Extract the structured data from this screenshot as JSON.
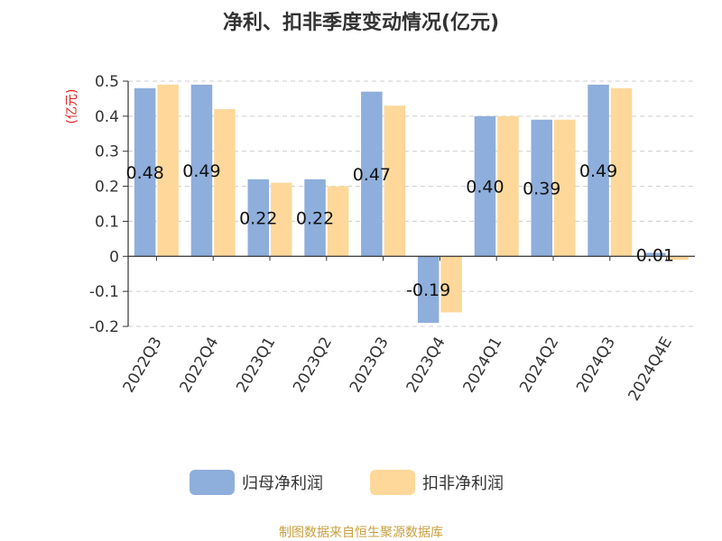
{
  "chart_data": {
    "type": "bar",
    "title": "净利、扣非季度变动情况(亿元)",
    "ylabel": "(亿元)",
    "ylim": [
      -0.2,
      0.5
    ],
    "yticks": [
      0.5,
      0.4,
      0.3,
      0.2,
      0.1,
      0,
      -0.1,
      -0.2
    ],
    "ytick_labels": [
      "0.5",
      "0.4",
      "0.3",
      "0.2",
      "0.1",
      "0",
      "-0.1",
      "-0.2"
    ],
    "grid": true,
    "legend_position": "bottom",
    "categories": [
      "2022Q3",
      "2022Q4",
      "2023Q1",
      "2023Q2",
      "2023Q3",
      "2023Q4",
      "2024Q1",
      "2024Q2",
      "2024Q3",
      "2024Q4E"
    ],
    "series": [
      {
        "name": "归母净利润",
        "color": "#8eaedc",
        "values": [
          0.48,
          0.49,
          0.22,
          0.22,
          0.47,
          -0.19,
          0.4,
          0.39,
          0.49,
          0.01
        ],
        "labels": [
          "0.48",
          "0.49",
          "0.22",
          "0.22",
          "0.47",
          "-0.19",
          "0.40",
          "0.39",
          "0.49",
          "0.01"
        ]
      },
      {
        "name": "扣非净利润",
        "color": "#fdd89a",
        "values": [
          0.49,
          0.42,
          0.21,
          0.2,
          0.43,
          -0.16,
          0.4,
          0.39,
          0.48,
          -0.01
        ]
      }
    ]
  },
  "source_text": "制图数据来自恒生聚源数据库",
  "colors": {
    "unit_label": "#e02020",
    "source_text": "#c8a040",
    "grid": "#cccccc",
    "axis": "#333333"
  }
}
